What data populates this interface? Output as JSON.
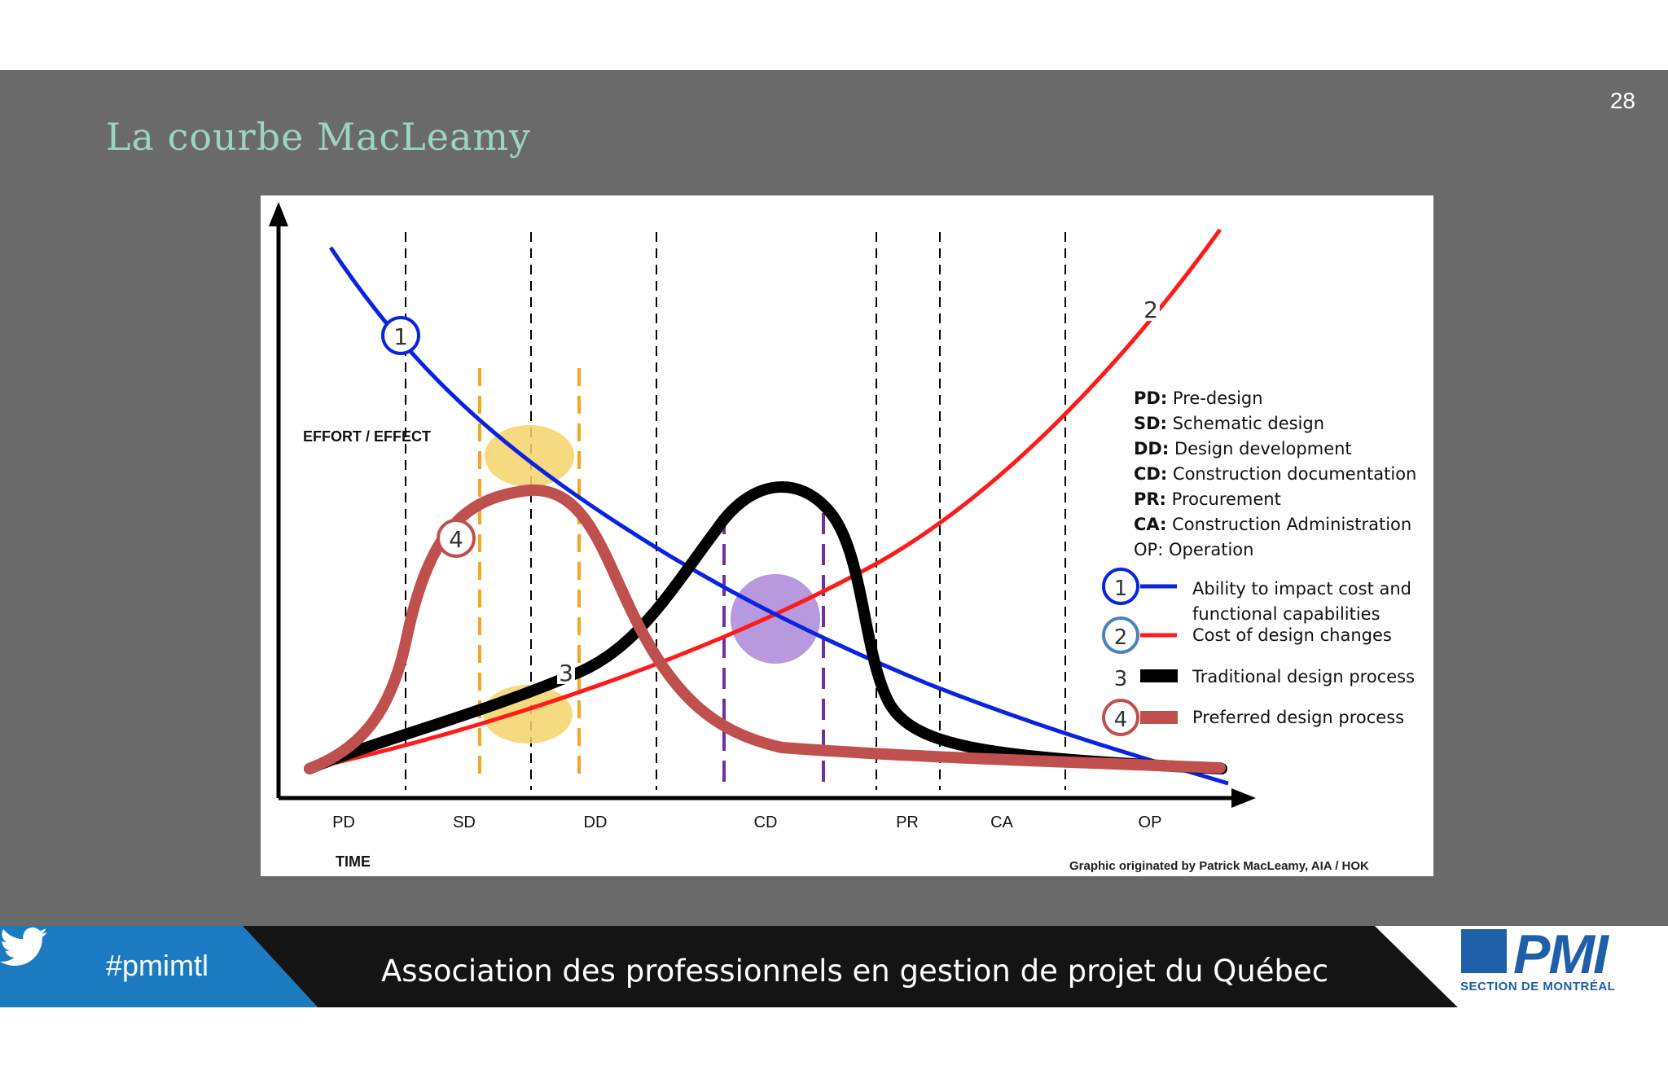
{
  "slide": {
    "title": "La courbe MacLeamy",
    "page_number": "28"
  },
  "figure": {
    "y_axis_label": "EFFORT / EFFECT",
    "x_axis_label": "TIME",
    "phases": [
      "PD",
      "SD",
      "DD",
      "CD",
      "PR",
      "CA",
      "OP"
    ],
    "credit": "Graphic originated by Patrick MacLeamy, AIA / HOK",
    "curve_markers": {
      "c1": "1",
      "c2": "2",
      "c3": "3",
      "c4": "4"
    },
    "glossary": [
      {
        "abbr": "PD:",
        "text": " Pre-design"
      },
      {
        "abbr": "SD:",
        "text": " Schematic design"
      },
      {
        "abbr": "DD:",
        "text": " Design development"
      },
      {
        "abbr": "CD:",
        "text": " Construction documentation"
      },
      {
        "abbr": "PR:",
        "text": " Procurement"
      },
      {
        "abbr": "CA:",
        "text": " Construction Administration"
      },
      {
        "abbr": "OP:",
        "text": " Operation"
      }
    ],
    "legend": [
      {
        "num": "1",
        "line1": "Ability to impact cost and",
        "line2": "functional capabilities",
        "color": "#0a23e0"
      },
      {
        "num": "2",
        "line1": "Cost of design changes",
        "line2": "",
        "color": "#ff1a1a"
      },
      {
        "num": "3",
        "line1": "Traditional design process",
        "line2": "",
        "color": "#000000"
      },
      {
        "num": "4",
        "line1": "Preferred design process",
        "line2": "",
        "color": "#c0504d"
      }
    ]
  },
  "colors": {
    "slide_bg": "#6b6a6a",
    "title": "#9bd5c2",
    "curve_blue": "#0a23e0",
    "curve_red": "#ff1a1a",
    "curve_black": "#000000",
    "curve_rose": "#c0504d",
    "highlight_yellow": "#f5d36a",
    "highlight_purple": "#a67fd6",
    "dash_orange": "#f5a623",
    "dash_purple": "#7030a0",
    "twitter_blue": "#1c7bc0",
    "pmi_blue": "#1f5ea8"
  },
  "footer": {
    "hashtag": "#pmimtl",
    "association": "Association des professionnels en gestion de projet du Québec",
    "logo_text": "PMI",
    "logo_sub": "SECTION DE MONTRÉAL"
  }
}
